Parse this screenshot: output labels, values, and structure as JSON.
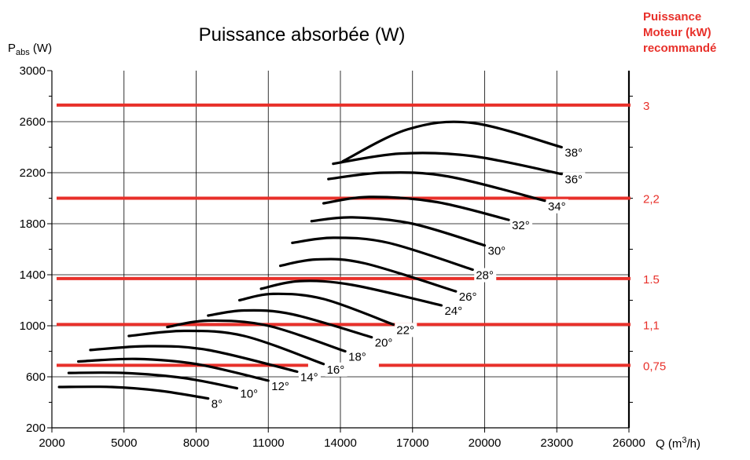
{
  "chart_data": {
    "type": "line",
    "title": "Puissance absorbée (W)",
    "ylabel_main": "P",
    "ylabel_sub": "abs",
    "ylabel_unit": " (W)",
    "xlabel": "Q  (m",
    "xlabel_sup": "3",
    "xlabel_end": "/h)",
    "right_title_lines": [
      "Puissance",
      "Moteur (kW)",
      "recommandé"
    ],
    "xlim": [
      2000,
      26000
    ],
    "ylim": [
      200,
      3000
    ],
    "x_ticks": [
      2000,
      5000,
      8000,
      11000,
      14000,
      17000,
      20000,
      23000,
      26000
    ],
    "y_ticks": [
      200,
      600,
      1000,
      1400,
      1800,
      2200,
      2600,
      3000
    ],
    "grid": true,
    "colors": {
      "curves": "#000000",
      "motor_lines": "#e8302a",
      "grid": "#000000"
    },
    "motor_lines": [
      {
        "label": "3",
        "y": 2730
      },
      {
        "label": "2,2",
        "y": 2000
      },
      {
        "label": "1.5",
        "y": 1370
      },
      {
        "label": "1,1",
        "y": 1010
      },
      {
        "label": "0,75",
        "y": 690
      }
    ],
    "series": [
      {
        "name": "8°",
        "x": [
          2300,
          4500,
          6500,
          8500
        ],
        "y": [
          520,
          520,
          490,
          430
        ]
      },
      {
        "name": "10°",
        "x": [
          2700,
          5000,
          7500,
          9700
        ],
        "y": [
          630,
          630,
          590,
          510
        ]
      },
      {
        "name": "12°",
        "x": [
          3100,
          5500,
          8000,
          11000
        ],
        "y": [
          720,
          740,
          700,
          570
        ]
      },
      {
        "name": "14°",
        "x": [
          3600,
          6000,
          8500,
          12200
        ],
        "y": [
          810,
          840,
          810,
          640
        ]
      },
      {
        "name": "16°",
        "x": [
          5200,
          7500,
          10000,
          13300
        ],
        "y": [
          920,
          960,
          920,
          700
        ]
      },
      {
        "name": "18°",
        "x": [
          6800,
          8500,
          11000,
          14200
        ],
        "y": [
          990,
          1040,
          1000,
          800
        ]
      },
      {
        "name": "20°",
        "x": [
          8500,
          10000,
          12000,
          15300
        ],
        "y": [
          1080,
          1120,
          1090,
          910
        ]
      },
      {
        "name": "22°",
        "x": [
          9800,
          11200,
          13300,
          16200
        ],
        "y": [
          1200,
          1250,
          1210,
          1010
        ]
      },
      {
        "name": "24°",
        "x": [
          10700,
          12300,
          14500,
          18200
        ],
        "y": [
          1290,
          1350,
          1320,
          1160
        ]
      },
      {
        "name": "26°",
        "x": [
          11500,
          13000,
          15000,
          18800
        ],
        "y": [
          1470,
          1520,
          1490,
          1270
        ]
      },
      {
        "name": "28°",
        "x": [
          12000,
          13700,
          16000,
          19500
        ],
        "y": [
          1650,
          1690,
          1650,
          1440
        ]
      },
      {
        "name": "30°",
        "x": [
          12800,
          14500,
          17000,
          20000
        ],
        "y": [
          1820,
          1850,
          1800,
          1630
        ]
      },
      {
        "name": "32°",
        "x": [
          13300,
          15200,
          18000,
          21000
        ],
        "y": [
          1960,
          2010,
          1970,
          1830
        ]
      },
      {
        "name": "34°",
        "x": [
          13500,
          15800,
          18500,
          22500
        ],
        "y": [
          2150,
          2200,
          2170,
          1980
        ]
      },
      {
        "name": "36°",
        "x": [
          13700,
          16500,
          19500,
          23200
        ],
        "y": [
          2270,
          2350,
          2330,
          2190
        ]
      },
      {
        "name": "38°",
        "x": [
          14100,
          16800,
          19500,
          23200
        ],
        "y": [
          2290,
          2540,
          2590,
          2400
        ]
      }
    ]
  }
}
